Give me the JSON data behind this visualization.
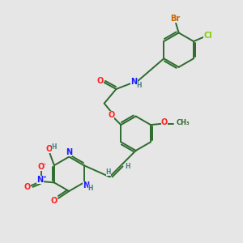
{
  "bg_color": "#e6e6e6",
  "bond_color": "#2d6b2d",
  "bond_width": 1.4,
  "atom_colors": {
    "C": "#2d6b2d",
    "H": "#4a8080",
    "N": "#1a1aff",
    "O": "#ff2020",
    "Br": "#cc6600",
    "Cl": "#88cc00"
  },
  "font_size": 7.0
}
